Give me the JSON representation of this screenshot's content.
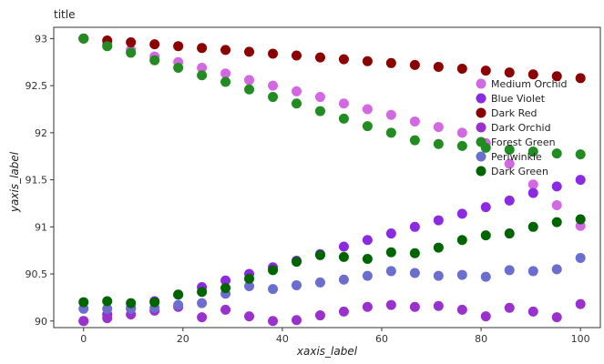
{
  "chart_data": {
    "type": "scatter",
    "title": "title",
    "xlabel": "xaxis_label",
    "ylabel": "yaxis_label",
    "xlim": [
      -6,
      104
    ],
    "ylim": [
      89.93,
      93.12
    ],
    "x_ticks": [
      0,
      20,
      40,
      60,
      80,
      100
    ],
    "x_tick_labels": [
      "0",
      "20",
      "40",
      "60",
      "80",
      "100"
    ],
    "y_ticks": [
      90,
      90.5,
      91,
      91.5,
      92,
      92.5,
      93
    ],
    "y_tick_labels": [
      "90",
      "90.5",
      "91",
      "91.5",
      "92",
      "92.5",
      "93"
    ],
    "grid": false,
    "legend_position": "right",
    "x": [
      0,
      4.76,
      9.52,
      14.29,
      19.05,
      23.81,
      28.57,
      33.33,
      38.1,
      42.86,
      47.62,
      52.38,
      57.14,
      61.9,
      66.67,
      71.43,
      76.19,
      80.95,
      85.71,
      90.48,
      95.24,
      100
    ],
    "series": [
      {
        "name": "Medium Orchid",
        "color": "#d269e2",
        "values": [
          93.0,
          92.94,
          92.88,
          92.81,
          92.75,
          92.69,
          92.63,
          92.56,
          92.5,
          92.44,
          92.38,
          92.31,
          92.25,
          92.19,
          92.12,
          92.06,
          92.0,
          91.89,
          91.67,
          91.45,
          91.23,
          91.01
        ]
      },
      {
        "name": "Blue Violet",
        "color": "#8a2be2",
        "values": [
          90.0,
          90.07,
          90.14,
          90.21,
          90.28,
          90.36,
          90.43,
          90.5,
          90.57,
          90.64,
          90.71,
          90.79,
          90.86,
          90.93,
          91.0,
          91.07,
          91.14,
          91.21,
          91.28,
          91.36,
          91.43,
          91.5
        ]
      },
      {
        "name": "Dark Red",
        "color": "#8b0000",
        "values": [
          93.0,
          92.98,
          92.96,
          92.94,
          92.92,
          92.9,
          92.88,
          92.86,
          92.84,
          92.82,
          92.8,
          92.78,
          92.76,
          92.74,
          92.72,
          92.7,
          92.68,
          92.66,
          92.64,
          92.62,
          92.6,
          92.58
        ]
      },
      {
        "name": "Dark Orchid",
        "color": "#9932cc",
        "values": [
          90.0,
          90.03,
          90.07,
          90.11,
          90.15,
          90.04,
          90.12,
          90.05,
          90.0,
          90.01,
          90.06,
          90.1,
          90.15,
          90.17,
          90.15,
          90.16,
          90.12,
          90.05,
          90.14,
          90.1,
          90.04,
          90.18
        ]
      },
      {
        "name": "Forest Green",
        "color": "#228b22",
        "values": [
          93.0,
          92.92,
          92.85,
          92.77,
          92.69,
          92.61,
          92.54,
          92.46,
          92.38,
          92.31,
          92.23,
          92.15,
          92.07,
          92.0,
          91.92,
          91.88,
          91.86,
          91.84,
          91.82,
          91.8,
          91.78,
          91.77
        ]
      },
      {
        "name": "Periwinkle",
        "color": "#6b6ecf",
        "values": [
          90.13,
          90.13,
          90.13,
          90.14,
          90.17,
          90.19,
          90.29,
          90.37,
          90.34,
          90.38,
          90.41,
          90.44,
          90.48,
          90.53,
          90.51,
          90.48,
          90.49,
          90.47,
          90.54,
          90.53,
          90.55,
          90.67
        ]
      },
      {
        "name": "Dark Green",
        "color": "#006400",
        "values": [
          90.2,
          90.21,
          90.19,
          90.2,
          90.28,
          90.31,
          90.35,
          90.45,
          90.54,
          90.63,
          90.7,
          90.68,
          90.66,
          90.73,
          90.72,
          90.78,
          90.86,
          90.91,
          90.93,
          91.0,
          91.05,
          91.08
        ]
      }
    ]
  }
}
